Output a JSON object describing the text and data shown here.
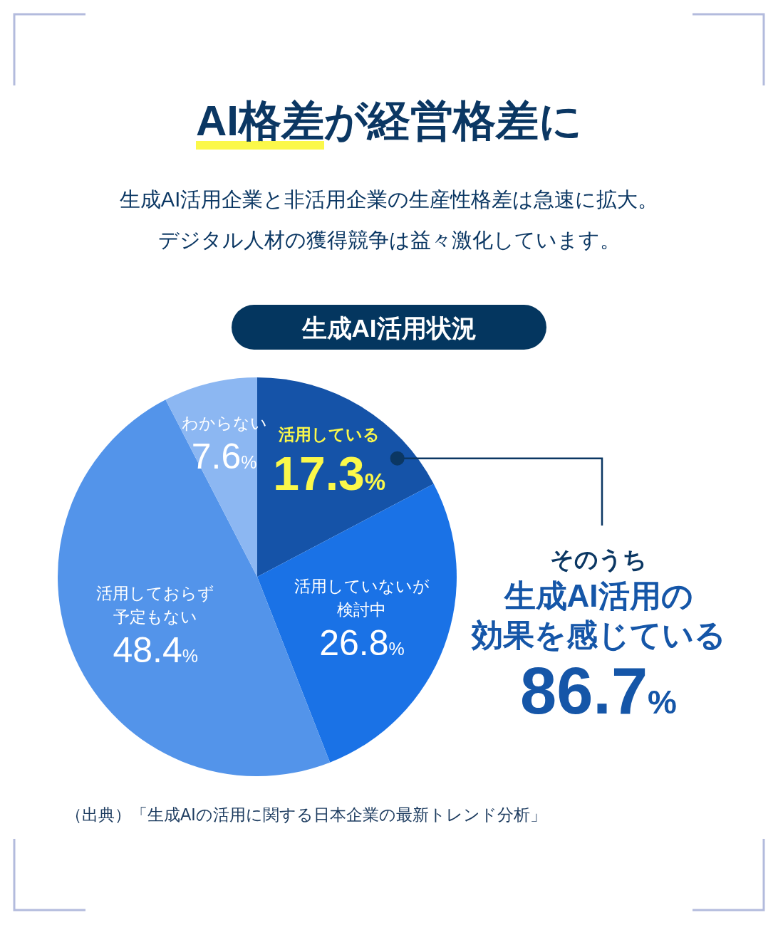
{
  "chart_data": {
    "type": "pie",
    "title": "AI格差が経営格差に",
    "subtitle": "生成AI活用企業と非活用企業の生産性格差は急速に拡大。デジタル人材の獲得競争は益々激化しています。",
    "categories": [
      "活用している",
      "活用していないが検討中",
      "活用しておらず予定もない",
      "わからない"
    ],
    "values": [
      17.3,
      26.8,
      48.4,
      7.6
    ],
    "colors": [
      "#1553a8",
      "#1a72e6",
      "#5394ea",
      "#8cb7f2"
    ],
    "value_labels": [
      "17.3%",
      "26.8%",
      "48.4%",
      "7.6%"
    ],
    "annotations": [
      "生成AI活用状況",
      {
        "text": "そのうち生成AI活用の効果を感じている86.7%",
        "x": "活用している"
      },
      "（出典）「生成AIの活用に関する日本企業の最新トレンド分析」"
    ]
  }
}
